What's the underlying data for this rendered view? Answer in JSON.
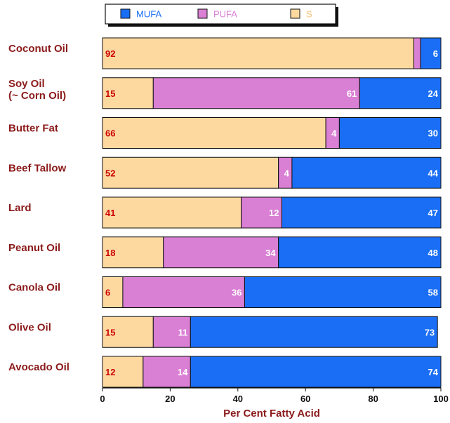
{
  "chart_data": {
    "type": "bar",
    "orientation": "horizontal",
    "stacked": true,
    "categories": [
      [
        "Coconut Oil"
      ],
      [
        "Soy Oil",
        "(~ Corn Oil)"
      ],
      [
        "Butter Fat"
      ],
      [
        "Beef Tallow"
      ],
      [
        "Lard"
      ],
      [
        "Peanut Oil"
      ],
      [
        "Canola Oil"
      ],
      [
        "Olive Oil"
      ],
      [
        "Avocado Oil"
      ]
    ],
    "series": [
      {
        "name": "S",
        "color": "#fdd9a0",
        "label_color": "#cc0000",
        "values": [
          92,
          15,
          66,
          52,
          41,
          18,
          6,
          15,
          12
        ]
      },
      {
        "name": "PUFA",
        "color": "#d97fd4",
        "label_color": "#ffffff",
        "values": [
          2,
          61,
          4,
          4,
          12,
          34,
          36,
          11,
          14
        ]
      },
      {
        "name": "MUFA",
        "color": "#1a6ef5",
        "label_color": "#ffffff",
        "values": [
          6,
          24,
          30,
          44,
          47,
          48,
          58,
          73,
          74
        ]
      }
    ],
    "value_labels": [
      [
        "92",
        "",
        "6"
      ],
      [
        "15",
        "61",
        "24"
      ],
      [
        "66",
        "4",
        "30"
      ],
      [
        "52",
        "4",
        "44"
      ],
      [
        "41",
        "12",
        "47"
      ],
      [
        "18",
        "34",
        "48"
      ],
      [
        "6",
        "36",
        "58"
      ],
      [
        "15",
        "11",
        "73"
      ],
      [
        "12",
        "14",
        "74"
      ]
    ],
    "legend": {
      "placement": "top-center",
      "entries": [
        {
          "name": "MUFA",
          "color": "#1a6ef5",
          "text_color": "#1a6ef5"
        },
        {
          "name": "PUFA",
          "color": "#d97fd4",
          "text_color": "#d97fd4"
        },
        {
          "name": "S",
          "color": "#fdd9a0",
          "text_color": "#f5c27a"
        }
      ]
    },
    "xlim": [
      0,
      100
    ],
    "xticks": [
      0,
      20,
      40,
      60,
      80,
      100
    ],
    "xlabel": "Per Cent Fatty Acid",
    "ylabel": "",
    "title": "",
    "grid": false
  }
}
